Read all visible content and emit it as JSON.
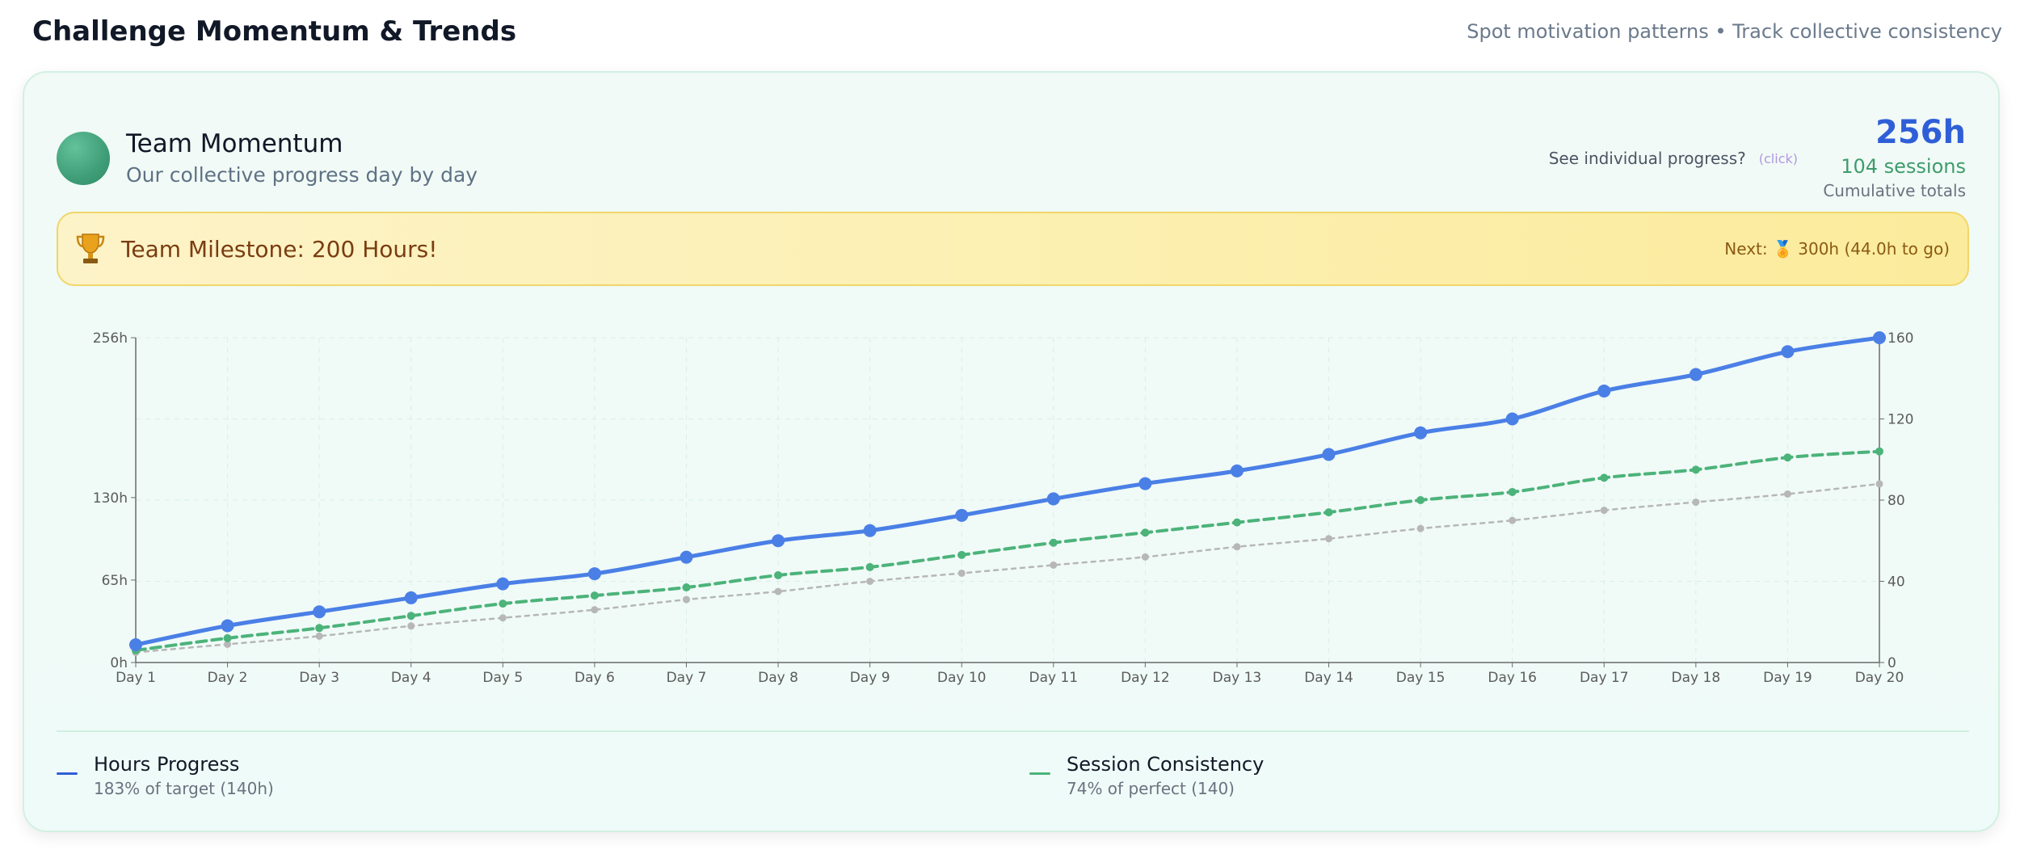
{
  "header": {
    "title": "Challenge Momentum & Trends",
    "subtitle": "Spot motivation patterns • Track collective consistency"
  },
  "card": {
    "title": "Team Momentum",
    "subtitle": "Our collective progress day by day",
    "individual_question": "See individual progress?",
    "click_label": "(click)",
    "total_hours": "256h",
    "total_sessions": "104 sessions",
    "totals_caption": "Cumulative totals"
  },
  "milestone": {
    "text": "Team Milestone: 200 Hours!",
    "next": "Next: 🏅 300h (44.0h to go)",
    "icon": "trophy-icon"
  },
  "colors": {
    "hours": "#4a7fe6",
    "sessions": "#4cb37a",
    "target": "#b7b7b7",
    "accent_blue": "#2f5fd8",
    "accent_green": "#3e9c6c"
  },
  "chart_data": {
    "type": "line",
    "categories": [
      "Day 1",
      "Day 2",
      "Day 3",
      "Day 4",
      "Day 5",
      "Day 6",
      "Day 7",
      "Day 8",
      "Day 9",
      "Day 10",
      "Day 11",
      "Day 12",
      "Day 13",
      "Day 14",
      "Day 15",
      "Day 16",
      "Day 17",
      "Day 18",
      "Day 19",
      "Day 20"
    ],
    "y_left": {
      "ticks": [
        "0h",
        "65h",
        "130h",
        "256h"
      ],
      "tick_values": [
        0,
        65,
        130,
        256
      ],
      "range": [
        0,
        256
      ]
    },
    "y_right": {
      "ticks": [
        "0",
        "40",
        "80",
        "120",
        "160"
      ],
      "tick_values": [
        0,
        40,
        80,
        120,
        160
      ],
      "range": [
        0,
        160
      ]
    },
    "grid": true,
    "series": [
      {
        "name": "Hours Progress",
        "axis": "left",
        "style": "solid",
        "values": [
          14,
          29,
          40,
          51,
          62,
          70,
          83,
          96,
          104,
          116,
          129,
          141,
          151,
          164,
          181,
          192,
          214,
          227,
          245,
          256
        ]
      },
      {
        "name": "Session Consistency",
        "axis": "right",
        "style": "dashed",
        "values": [
          6,
          12,
          17,
          23,
          29,
          33,
          37,
          43,
          47,
          53,
          59,
          64,
          69,
          74,
          80,
          84,
          91,
          95,
          101,
          104
        ]
      },
      {
        "name": "",
        "axis": "right",
        "style": "dotted",
        "values": [
          5,
          9,
          13,
          18,
          22,
          26,
          31,
          35,
          40,
          44,
          48,
          52,
          57,
          61,
          66,
          70,
          75,
          79,
          83,
          88
        ]
      }
    ]
  },
  "legend": [
    {
      "name": "Hours Progress",
      "sub": "183% of target (140h)"
    },
    {
      "name": "Session Consistency",
      "sub": "74% of perfect (140)"
    }
  ]
}
